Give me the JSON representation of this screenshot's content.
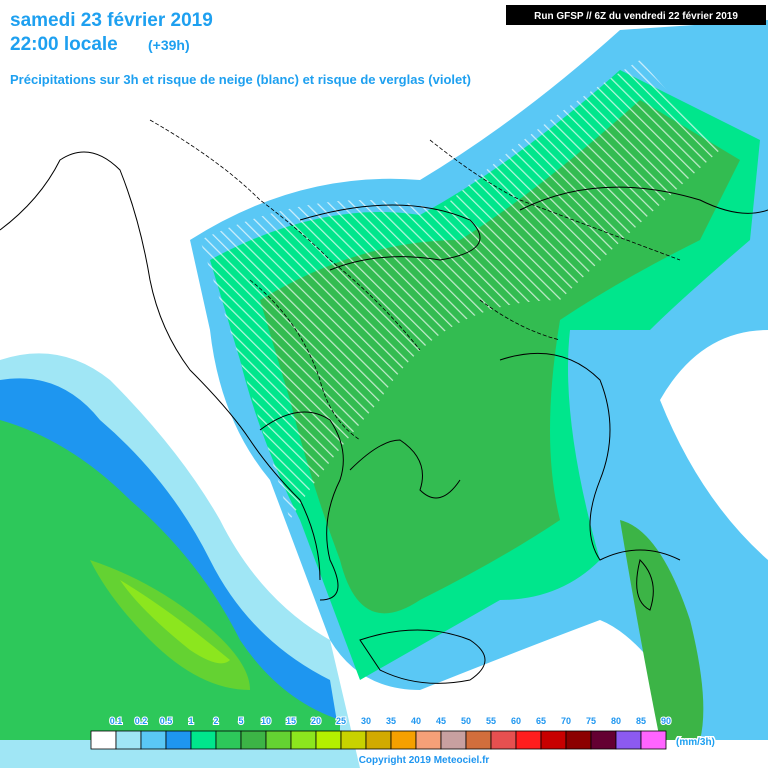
{
  "header": {
    "date": "samedi 23 février 2019",
    "time": "22:00 locale",
    "lead": "(+39h)",
    "subtitle": "Précipitations sur 3h et risque de neige (blanc) et risque de verglas (violet)",
    "run": "Run GFSP // 6Z du vendredi 22 février 2019"
  },
  "legend": {
    "labels": [
      0.1,
      0.2,
      0.5,
      1,
      2,
      5,
      10,
      15,
      20,
      25,
      30,
      35,
      40,
      45,
      50,
      55,
      60,
      65,
      70,
      75,
      80,
      85,
      90
    ],
    "colors": [
      "#ffffff",
      "#a0e6f5",
      "#5ac8f5",
      "#1e96f0",
      "#00e68c",
      "#2dc85a",
      "#3cb446",
      "#64d232",
      "#8ce61e",
      "#b4f000",
      "#c8d200",
      "#d2aa00",
      "#f5a000",
      "#f5a078",
      "#c8a0a0",
      "#d26e3c",
      "#e65050",
      "#ff1e1e",
      "#c80000",
      "#8c0000",
      "#640032",
      "#8c5af0",
      "#ff64ff"
    ],
    "unit": "(mm/3h)"
  },
  "footer": {
    "copyright": "Copyright 2019 Meteociel.fr"
  }
}
